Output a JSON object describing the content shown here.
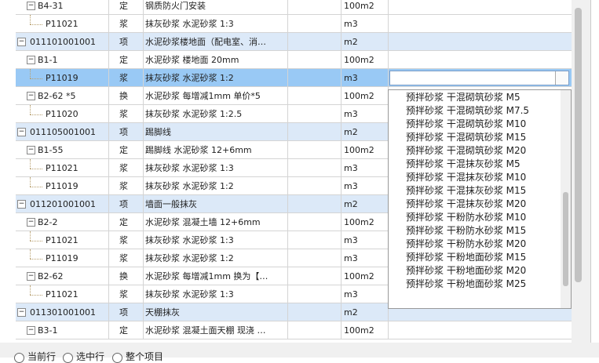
{
  "table": {
    "rows": [
      [
        "B4-31",
        "定",
        "钢质防火门安装",
        "100m2"
      ],
      [
        "P11021",
        "浆",
        "抹灰砂浆 水泥砂浆 1:3",
        "m3"
      ],
      [
        "011101001001",
        "项",
        "水泥砂浆楼地面（配电室、消…",
        "m2"
      ],
      [
        "B1-1",
        "定",
        "水泥砂浆 楼地面 20mm",
        "100m2"
      ],
      [
        "P11019",
        "浆",
        "抹灰砂浆 水泥砂浆 1:2",
        "m3"
      ],
      [
        "B2-62 *5",
        "换",
        "水泥砂浆 每增减1mm  单价*5",
        "100m2"
      ],
      [
        "P11020",
        "浆",
        "抹灰砂浆 水泥砂浆 1:2.5",
        "m3"
      ],
      [
        "011105001001",
        "项",
        "踢脚线",
        "m2"
      ],
      [
        "B1-55",
        "定",
        "踢脚线 水泥砂浆 12+6mm",
        "100m2"
      ],
      [
        "P11021",
        "浆",
        "抹灰砂浆 水泥砂浆 1:3",
        "m3"
      ],
      [
        "P11019",
        "浆",
        "抹灰砂浆 水泥砂浆 1:2",
        "m3"
      ],
      [
        "011201001001",
        "项",
        "墙面一般抹灰",
        "m2"
      ],
      [
        "B2-2",
        "定",
        "水泥砂浆 混凝土墙 12+6mm",
        "100m2"
      ],
      [
        "P11021",
        "浆",
        "抹灰砂浆 水泥砂浆 1:3",
        "m3"
      ],
      [
        "P11019",
        "浆",
        "抹灰砂浆 水泥砂浆 1:2",
        "m3"
      ],
      [
        "B2-62",
        "换",
        "水泥砂浆 每增减1mm  换为【…",
        "100m2"
      ],
      [
        "P11021",
        "浆",
        "抹灰砂浆 水泥砂浆 1:3",
        "m3"
      ],
      [
        "011301001001",
        "项",
        "天棚抹灰",
        "m2"
      ],
      [
        "B3-1",
        "定",
        "水泥砂浆 混凝土面天棚 现浇 …",
        "100m2"
      ]
    ]
  },
  "dropdown": {
    "items": [
      "预拌砂浆 干混砌筑砂浆 M5",
      "预拌砂浆 干混砌筑砂浆 M7.5",
      "预拌砂浆 干混砌筑砂浆 M10",
      "预拌砂浆 干混砌筑砂浆 M15",
      "预拌砂浆 干混砌筑砂浆 M20",
      "预拌砂浆 干混抹灰砂浆 M5",
      "预拌砂浆 干混抹灰砂浆 M10",
      "预拌砂浆 干混抹灰砂浆 M15",
      "预拌砂浆 干混抹灰砂浆 M20",
      "预拌砂浆 干粉防水砂浆 M10",
      "预拌砂浆 干粉防水砂浆 M15",
      "预拌砂浆 干粉防水砂浆 M20",
      "预拌砂浆 干粉地面砂浆 M15",
      "预拌砂浆 干粉地面砂浆 M20",
      "预拌砂浆 干粉地面砂浆 M25"
    ]
  },
  "options": [
    "当前行",
    "选中行",
    "整个项目"
  ]
}
